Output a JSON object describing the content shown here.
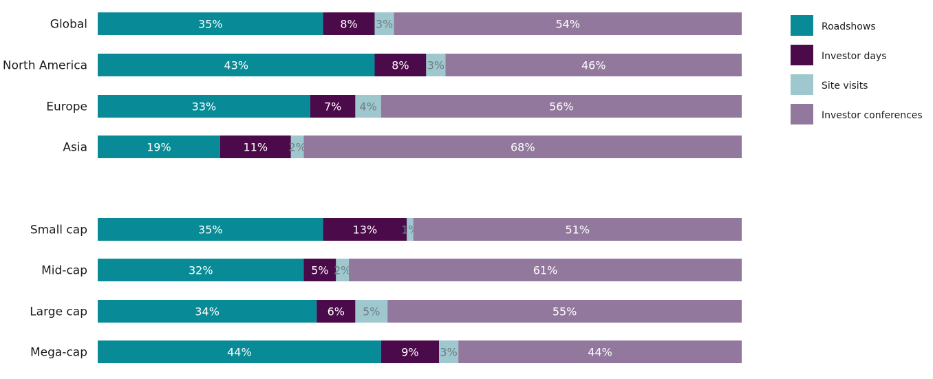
{
  "chart_data": {
    "type": "bar",
    "orientation": "horizontal",
    "stacked": true,
    "title": "",
    "xlabel": "",
    "ylabel": "",
    "xlim": [
      0,
      100
    ],
    "grid": false,
    "legend_position": "top-right",
    "groups": [
      [
        "Global",
        "North America",
        "Europe",
        "Asia"
      ],
      [
        "Small cap",
        "Mid-cap",
        "Large cap",
        "Mega-cap"
      ]
    ],
    "categories": [
      "Global",
      "North America",
      "Europe",
      "Asia",
      "Small cap",
      "Mid-cap",
      "Large cap",
      "Mega-cap"
    ],
    "series": [
      {
        "name": "Roadshows",
        "color": "#088b96",
        "label_color": "#ffffff",
        "values": [
          35,
          43,
          33,
          19,
          35,
          32,
          34,
          44
        ],
        "labels": [
          "35%",
          "43%",
          "33%",
          "19%",
          "35%",
          "32%",
          "34%",
          "44%"
        ]
      },
      {
        "name": "Investor days",
        "color": "#4b0a4a",
        "label_color": "#ffffff",
        "values": [
          8,
          8,
          7,
          11,
          13,
          5,
          6,
          9
        ],
        "labels": [
          "8%",
          "8%",
          "7%",
          "11%",
          "13%",
          "5%",
          "6%",
          "9%"
        ]
      },
      {
        "name": "Site visits",
        "color": "#9fc7ce",
        "label_color": "#6f7f86",
        "values": [
          3,
          3,
          4,
          2,
          1,
          2,
          5,
          3
        ],
        "labels": [
          "3%",
          "3%",
          "4%",
          "2%",
          "1%",
          "2%",
          "5%",
          "3%"
        ]
      },
      {
        "name": "Investor conferences",
        "color": "#93789d",
        "label_color": "#ffffff",
        "values": [
          54,
          46,
          56,
          68,
          51,
          61,
          55,
          44
        ],
        "labels": [
          "54%",
          "46%",
          "56%",
          "68%",
          "51%",
          "61%",
          "55%",
          "44%"
        ]
      }
    ]
  }
}
